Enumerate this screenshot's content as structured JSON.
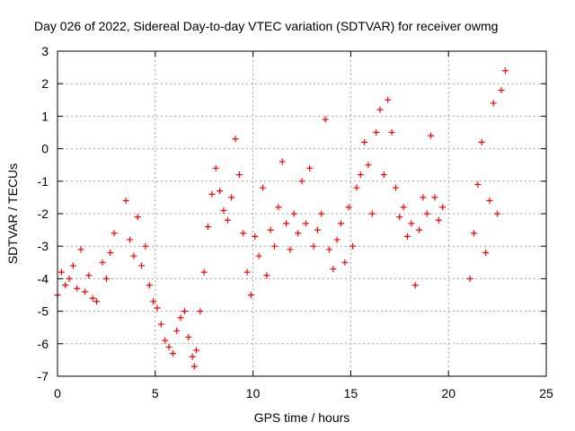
{
  "chart_data": {
    "type": "scatter",
    "title": "Day 026 of 2022, Sidereal Day-to-day VTEC variation (SDTVAR) for receiver owmg",
    "xlabel": "GPS time / hours",
    "ylabel": "SDTVAR / TECUs",
    "xlim": [
      0,
      25
    ],
    "ylim": [
      -7,
      3
    ],
    "xticks": [
      0,
      5,
      10,
      15,
      20,
      25
    ],
    "yticks": [
      -7,
      -6,
      -5,
      -4,
      -3,
      -2,
      -1,
      0,
      1,
      2,
      3
    ],
    "grid": true,
    "marker": "plus",
    "color": "#ff0000",
    "series": [
      {
        "name": "SDTVAR",
        "x": [
          0.0,
          0.2,
          0.4,
          0.6,
          0.8,
          1.0,
          1.2,
          1.4,
          1.6,
          1.8,
          2.0,
          2.3,
          2.5,
          2.7,
          2.9,
          3.5,
          3.7,
          3.9,
          4.1,
          4.3,
          4.5,
          4.7,
          4.9,
          5.1,
          5.3,
          5.5,
          5.7,
          5.9,
          6.1,
          6.3,
          6.5,
          6.7,
          6.9,
          7.0,
          7.1,
          7.3,
          7.5,
          7.7,
          7.9,
          8.1,
          8.3,
          8.5,
          8.7,
          8.9,
          9.1,
          9.3,
          9.5,
          9.7,
          9.9,
          10.1,
          10.3,
          10.5,
          10.7,
          10.9,
          11.1,
          11.3,
          11.5,
          11.7,
          11.9,
          12.1,
          12.3,
          12.5,
          12.7,
          12.9,
          13.1,
          13.3,
          13.5,
          13.7,
          13.9,
          14.1,
          14.3,
          14.5,
          14.7,
          14.9,
          15.1,
          15.3,
          15.5,
          15.7,
          15.9,
          16.1,
          16.3,
          16.5,
          16.7,
          16.9,
          17.1,
          17.3,
          17.5,
          17.7,
          17.9,
          18.1,
          18.3,
          18.5,
          18.7,
          18.9,
          19.1,
          19.3,
          19.5,
          19.7,
          21.1,
          21.3,
          21.5,
          21.7,
          21.9,
          22.1,
          22.3,
          22.5,
          22.7,
          22.9
        ],
        "y": [
          -4.5,
          -3.8,
          -4.2,
          -4.0,
          -3.6,
          -4.3,
          -3.1,
          -4.4,
          -3.9,
          -4.6,
          -4.7,
          -3.5,
          -4.0,
          -3.2,
          -2.6,
          -1.6,
          -2.8,
          -3.3,
          -2.1,
          -3.6,
          -3.0,
          -4.2,
          -4.7,
          -4.9,
          -5.4,
          -5.9,
          -6.1,
          -6.3,
          -5.6,
          -5.2,
          -5.0,
          -5.8,
          -6.4,
          -6.7,
          -6.2,
          -5.0,
          -3.8,
          -2.4,
          -1.4,
          -0.6,
          -1.3,
          -1.9,
          -2.2,
          -1.5,
          0.3,
          -0.8,
          -2.6,
          -3.8,
          -4.5,
          -2.7,
          -3.3,
          -1.2,
          -3.9,
          -2.5,
          -3.0,
          -1.8,
          -0.4,
          -2.3,
          -3.1,
          -2.0,
          -2.6,
          -1.0,
          -2.3,
          -0.6,
          -3.0,
          -2.5,
          -2.0,
          0.9,
          -3.1,
          -3.7,
          -2.8,
          -2.3,
          -3.5,
          -1.8,
          -3.0,
          -1.2,
          -0.8,
          0.2,
          -0.5,
          -2.0,
          0.5,
          1.2,
          -0.8,
          1.5,
          0.5,
          -1.2,
          -2.1,
          -1.8,
          -2.7,
          -2.3,
          -4.2,
          -2.5,
          -1.5,
          -2.0,
          0.4,
          -1.5,
          -2.2,
          -1.8,
          -4.0,
          -2.6,
          -1.1,
          0.2,
          -3.2,
          -1.6,
          1.4,
          -2.0,
          1.8,
          2.4
        ]
      }
    ]
  }
}
